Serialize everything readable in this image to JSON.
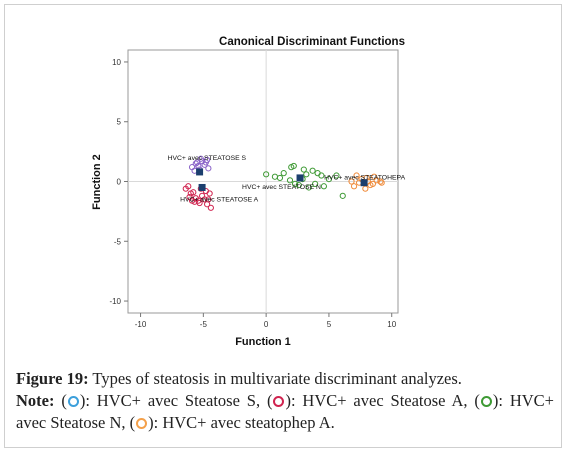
{
  "chart_data": {
    "type": "scatter",
    "title": "Canonical Discriminant Functions",
    "xlabel": "Function 1",
    "ylabel": "Function 2",
    "xlim": [
      -11,
      10.5
    ],
    "ylim": [
      -11,
      11
    ],
    "xticks": [
      -10,
      -5,
      0,
      5,
      10
    ],
    "yticks": [
      10,
      5,
      0,
      -5,
      -10
    ],
    "grid": false,
    "series": [
      {
        "name": "HVC+ avec STEATOSE S",
        "color": "#8a63c8",
        "points": [
          [
            -5.6,
            1.5
          ],
          [
            -5.2,
            1.9
          ],
          [
            -4.8,
            1.6
          ],
          [
            -5.9,
            1.2
          ],
          [
            -5.4,
            1.3
          ],
          [
            -4.6,
            1.1
          ],
          [
            -5.1,
            1.7
          ],
          [
            -5.7,
            0.9
          ],
          [
            -4.9,
            1.4
          ],
          [
            -5.3,
            1.0
          ],
          [
            -4.7,
            1.8
          ],
          [
            -5.5,
            1.6
          ]
        ],
        "centroid": [
          -5.3,
          0.8
        ]
      },
      {
        "name": "HVC+ avec STEATOSE A",
        "color": "#d0234f",
        "points": [
          [
            -6.2,
            -0.4
          ],
          [
            -5.8,
            -0.9
          ],
          [
            -5.1,
            -1.2
          ],
          [
            -4.6,
            -1.5
          ],
          [
            -4.4,
            -2.2
          ],
          [
            -5.6,
            -1.4
          ],
          [
            -6.0,
            -1.0
          ],
          [
            -4.8,
            -0.8
          ],
          [
            -5.3,
            -1.8
          ],
          [
            -4.5,
            -1.0
          ],
          [
            -6.4,
            -0.6
          ],
          [
            -5.9,
            -1.6
          ],
          [
            -4.9,
            -1.5
          ],
          [
            -5.2,
            -0.6
          ],
          [
            -5.7,
            -1.7
          ],
          [
            -4.7,
            -1.9
          ],
          [
            -6.1,
            -1.3
          ],
          [
            -5.4,
            -1.6
          ]
        ],
        "centroid": [
          -5.1,
          -0.5
        ]
      },
      {
        "name": "HVC+ avec STEATOSE N",
        "color": "#3e9a34",
        "points": [
          [
            0.0,
            0.6
          ],
          [
            0.7,
            0.4
          ],
          [
            1.4,
            0.7
          ],
          [
            2.2,
            1.3
          ],
          [
            3.0,
            1.0
          ],
          [
            3.7,
            0.9
          ],
          [
            4.4,
            0.5
          ],
          [
            5.0,
            0.2
          ],
          [
            2.6,
            -0.3
          ],
          [
            3.4,
            -0.5
          ],
          [
            1.9,
            0.1
          ],
          [
            2.9,
            0.2
          ],
          [
            3.9,
            -0.2
          ],
          [
            4.6,
            -0.4
          ],
          [
            1.1,
            0.3
          ],
          [
            2.3,
            -0.2
          ],
          [
            3.2,
            0.6
          ],
          [
            4.1,
            0.7
          ],
          [
            5.6,
            0.5
          ],
          [
            6.1,
            -1.2
          ],
          [
            2.0,
            1.2
          ]
        ],
        "centroid": [
          2.7,
          0.3
        ]
      },
      {
        "name": "HVC+ avec STEATOHEPA",
        "color": "#f08b3a",
        "points": [
          [
            7.2,
            0.5
          ],
          [
            7.6,
            0.2
          ],
          [
            8.1,
            0.0
          ],
          [
            8.5,
            -0.2
          ],
          [
            8.8,
            0.1
          ],
          [
            9.1,
            0.0
          ],
          [
            7.0,
            -0.4
          ],
          [
            7.9,
            -0.6
          ],
          [
            8.3,
            -0.3
          ],
          [
            6.8,
            0.0
          ],
          [
            7.4,
            -0.1
          ],
          [
            8.0,
            0.3
          ],
          [
            8.6,
            0.4
          ],
          [
            9.2,
            -0.1
          ]
        ],
        "centroid": [
          7.8,
          -0.1
        ]
      }
    ]
  },
  "caption": {
    "figure_label": "Figure 19:",
    "figure_text": " Types of steatosis in multivariate discriminant analyzes.",
    "note_label": "Note:",
    "legend": [
      {
        "color": "#3b9fdb",
        "text": "): HVC+ avec Steatose S, ("
      },
      {
        "color": "#d0234f",
        "text": "): HVC+ avec Steatose A, ("
      },
      {
        "color": "#3e9a34",
        "text": "): HVC+ avec Steatose N, ("
      },
      {
        "color": "#f4a04a",
        "text": "): HVC+ avec steatophep A."
      }
    ]
  }
}
